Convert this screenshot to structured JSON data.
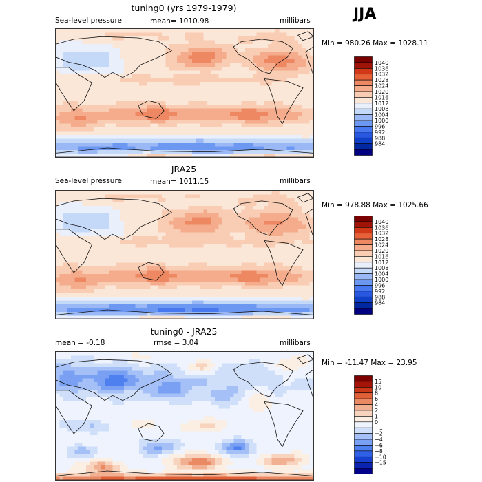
{
  "season": "JJA",
  "colors": {
    "pressure": [
      "#000080",
      "#0028a0",
      "#1040c8",
      "#2858e0",
      "#4878f0",
      "#6d98f2",
      "#9ab8f5",
      "#c4d8f8",
      "#eaeffc",
      "#fbe7d8",
      "#f8cdb4",
      "#f4ac8c",
      "#ee8862",
      "#e66038",
      "#d03818",
      "#a01408",
      "#7a0000"
    ],
    "difference": [
      "#00008a",
      "#0a24b0",
      "#1840d0",
      "#3060e8",
      "#4f80f0",
      "#7aa0f3",
      "#a5c0f6",
      "#cfdff9",
      "#eef3fd",
      "#fbeee2",
      "#f8d3bd",
      "#f2b092",
      "#ea8a64",
      "#e06038",
      "#cb3818",
      "#a41408",
      "#7c0000"
    ]
  },
  "chart_data": [
    {
      "type": "heatmap",
      "title": "tuning0 (yrs 1979-1979)",
      "left_label": "Sea-level pressure",
      "center_label": "mean= 1010.98",
      "right_label": "millibars",
      "stats": "Min = 980.26 Max = 1028.11",
      "colorbar_ticks": [
        "1040",
        "1036",
        "1032",
        "1028",
        "1024",
        "1020",
        "1016",
        "1012",
        "1008",
        "1004",
        "1000",
        "996",
        "992",
        "988",
        "984"
      ],
      "colorbar_min": 980.26,
      "colorbar_max": 1028.11,
      "field_mean": 1010.98
    },
    {
      "type": "heatmap",
      "title": "JRA25",
      "left_label": "Sea-level pressure",
      "center_label": "mean= 1011.15",
      "right_label": "millibars",
      "stats": "Min = 978.88 Max = 1025.66",
      "colorbar_ticks": [
        "1040",
        "1036",
        "1032",
        "1028",
        "1024",
        "1020",
        "1016",
        "1012",
        "1008",
        "1004",
        "1000",
        "996",
        "992",
        "988",
        "984"
      ],
      "colorbar_min": 978.88,
      "colorbar_max": 1025.66,
      "field_mean": 1011.15
    },
    {
      "type": "heatmap",
      "title": "tuning0 - JRA25",
      "left_label": "mean =   -0.18",
      "center_label": "rmse =    3.04",
      "right_label": "millibars",
      "stats": "Min = -11.47 Max =   23.95",
      "colorbar_ticks": [
        "15",
        "10",
        "8",
        "6",
        "4",
        "2",
        "1",
        "0",
        "−1",
        "−2",
        "−4",
        "−6",
        "−8",
        "−10",
        "−15"
      ],
      "colorbar_min": -11.47,
      "colorbar_max": 23.95,
      "field_mean": -0.18
    }
  ]
}
